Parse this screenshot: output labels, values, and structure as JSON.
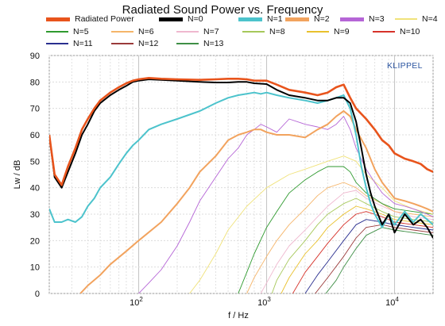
{
  "chart_data": {
    "type": "line",
    "title": "Radiated Sound Power vs. Frequency",
    "xlabel": "f / Hz",
    "ylabel": "Lw / dB",
    "x_scale": "log",
    "xlim": [
      20,
      20000
    ],
    "ylim": [
      0,
      90
    ],
    "yticks": [
      0,
      10,
      20,
      30,
      40,
      50,
      60,
      70,
      80,
      90
    ],
    "xticks": [
      {
        "value": 100,
        "label": "10 2"
      },
      {
        "value": 1000,
        "label": "10 3"
      },
      {
        "value": 10000,
        "label": "10 4"
      }
    ],
    "grid": true,
    "legend_position": "top",
    "brand": "KLIPPEL",
    "series": [
      {
        "name": "Radiated Power",
        "color": "#e8541c",
        "x": [
          20,
          22,
          25,
          28,
          32,
          36,
          40,
          45,
          50,
          60,
          70,
          80,
          90,
          100,
          120,
          150,
          200,
          300,
          400,
          500,
          600,
          700,
          800,
          1000,
          1200,
          1500,
          2000,
          2500,
          3000,
          3500,
          4000,
          4500,
          5000,
          6000,
          7000,
          8000,
          9000,
          10000,
          12000,
          14000,
          16000,
          18000,
          20000
        ],
        "values": [
          60,
          45,
          41,
          48,
          55,
          62,
          66,
          70,
          73,
          76,
          78,
          79.5,
          80.5,
          81,
          81.5,
          81.2,
          81,
          80.8,
          81,
          81.2,
          81.2,
          81,
          80.5,
          80.5,
          79,
          77,
          76,
          75,
          76,
          78,
          79,
          74,
          70,
          66,
          62,
          58,
          56,
          53,
          51,
          50,
          49,
          47,
          46
        ]
      },
      {
        "name": "N=0",
        "color": "#000000",
        "x": [
          20,
          22,
          25,
          28,
          32,
          36,
          40,
          45,
          50,
          60,
          70,
          80,
          90,
          100,
          120,
          150,
          200,
          300,
          400,
          500,
          600,
          700,
          800,
          1000,
          1200,
          1500,
          2000,
          2500,
          3000,
          3500,
          4000,
          4500,
          5000,
          5500,
          6000,
          6500,
          7000,
          8000,
          9000,
          10000,
          12000,
          14000,
          16000,
          18000,
          20000
        ],
        "values": [
          60,
          44,
          40,
          46,
          53,
          60,
          64,
          69,
          72,
          75,
          77,
          78.5,
          80,
          80.5,
          81,
          80.8,
          80.5,
          80,
          79.8,
          79.8,
          80,
          80,
          79.5,
          79.2,
          77,
          75,
          74,
          73,
          73,
          74,
          74,
          72,
          65,
          55,
          45,
          38,
          33,
          26,
          30,
          23,
          30,
          26,
          28,
          25,
          21
        ]
      },
      {
        "name": "N=1",
        "color": "#4cc3cc",
        "x": [
          20,
          22,
          25,
          28,
          32,
          36,
          40,
          45,
          50,
          60,
          70,
          80,
          90,
          100,
          120,
          150,
          200,
          300,
          400,
          500,
          600,
          700,
          800,
          900,
          1000,
          1200,
          1500,
          2000,
          2500,
          3000,
          3500,
          4000,
          4500,
          5000,
          5500,
          6000,
          6500,
          7000,
          8000,
          9000,
          10000,
          12000,
          14000,
          16000,
          18000,
          20000
        ],
        "values": [
          32,
          27,
          27,
          28,
          27,
          29,
          33,
          36,
          40,
          44,
          49,
          53,
          56,
          58,
          62,
          64,
          66,
          69,
          72,
          74,
          75,
          75.5,
          76,
          75.5,
          76,
          75,
          74,
          73,
          72,
          73,
          74,
          75,
          70,
          60,
          48,
          40,
          34,
          30,
          25,
          30,
          26,
          31,
          27,
          30,
          28,
          26
        ]
      },
      {
        "name": "N=2",
        "color": "#f2a35e",
        "x": [
          35,
          40,
          50,
          60,
          80,
          100,
          150,
          200,
          250,
          300,
          400,
          500,
          600,
          700,
          800,
          900,
          1000,
          1200,
          1500,
          2000,
          2500,
          3000,
          3500,
          4000,
          4500,
          5000,
          6000,
          7000,
          8000,
          10000,
          12000,
          14000,
          16000,
          18000,
          20000
        ],
        "values": [
          0,
          3,
          7,
          11,
          16,
          20,
          27,
          34,
          40,
          46,
          52,
          58,
          60,
          61,
          62,
          62,
          61,
          60,
          60,
          59,
          62,
          64,
          67,
          69,
          67,
          62,
          55,
          47,
          42,
          36,
          35,
          34,
          33,
          32,
          31
        ]
      },
      {
        "name": "N=3",
        "color": "#b565d6",
        "x": [
          100,
          120,
          150,
          200,
          250,
          300,
          400,
          500,
          600,
          700,
          800,
          900,
          1000,
          1200,
          1500,
          2000,
          2500,
          3000,
          3500,
          4000,
          4500,
          5000,
          6000,
          7000,
          8000,
          10000,
          12000,
          14000,
          16000,
          18000,
          20000
        ],
        "values": [
          0,
          4,
          9,
          18,
          27,
          35,
          44,
          51,
          55,
          60,
          62,
          64,
          63,
          61,
          66,
          64,
          63,
          62,
          64,
          67,
          62,
          55,
          47,
          42,
          38,
          34,
          33,
          32,
          31,
          30,
          29
        ]
      },
      {
        "name": "N=4",
        "color": "#f0e27a",
        "x": [
          250,
          300,
          400,
          500,
          700,
          1000,
          1500,
          2000,
          3000,
          4000,
          5000,
          6000,
          8000,
          10000,
          14000,
          20000
        ],
        "values": [
          0,
          5,
          15,
          24,
          33,
          40,
          45,
          47,
          50,
          52,
          50,
          45,
          40,
          35,
          32,
          30
        ]
      },
      {
        "name": "N=5",
        "color": "#2f9a2f",
        "x": [
          600,
          700,
          800,
          1000,
          1200,
          1500,
          2000,
          2500,
          3000,
          3500,
          4000,
          4500,
          5000,
          6000,
          8000,
          10000,
          14000,
          20000
        ],
        "values": [
          0,
          8,
          15,
          25,
          31,
          38,
          43,
          46,
          48,
          48,
          48,
          46,
          42,
          38,
          34,
          32,
          31,
          30
        ]
      },
      {
        "name": "N=6",
        "color": "#f5b56a",
        "x": [
          700,
          800,
          1000,
          1200,
          1500,
          2000,
          2500,
          3000,
          4000,
          5000,
          6000,
          8000,
          10000,
          14000,
          20000
        ],
        "values": [
          0,
          6,
          14,
          20,
          26,
          32,
          37,
          40,
          42,
          40,
          37,
          34,
          31,
          30,
          29
        ]
      },
      {
        "name": "N=7",
        "color": "#efb8cf",
        "x": [
          900,
          1000,
          1200,
          1500,
          2000,
          2500,
          3000,
          4000,
          5000,
          6000,
          8000,
          10000,
          14000,
          20000
        ],
        "values": [
          0,
          4,
          11,
          18,
          24,
          29,
          33,
          38,
          39,
          36,
          33,
          31,
          29,
          28
        ]
      },
      {
        "name": "N=8",
        "color": "#a6c85a",
        "x": [
          1100,
          1200,
          1500,
          2000,
          2500,
          3000,
          4000,
          5000,
          6000,
          8000,
          10000,
          14000,
          20000
        ],
        "values": [
          0,
          5,
          13,
          20,
          26,
          30,
          34,
          36,
          34,
          31,
          29,
          28,
          27
        ]
      },
      {
        "name": "N=9",
        "color": "#e9c12d",
        "x": [
          1300,
          1500,
          2000,
          2500,
          3000,
          4000,
          5000,
          6000,
          8000,
          10000,
          14000,
          20000
        ],
        "values": [
          0,
          6,
          15,
          20,
          25,
          30,
          33,
          32,
          30,
          28,
          27,
          26
        ]
      },
      {
        "name": "N=10",
        "color": "#d6322a",
        "x": [
          1600,
          2000,
          2500,
          3000,
          4000,
          5000,
          6000,
          8000,
          10000,
          14000,
          20000
        ],
        "values": [
          0,
          8,
          14,
          19,
          26,
          30,
          31,
          29,
          27,
          26,
          25
        ]
      },
      {
        "name": "N=11",
        "color": "#2a2f8f",
        "x": [
          2000,
          2500,
          3000,
          4000,
          5000,
          6000,
          8000,
          10000,
          14000,
          20000
        ],
        "values": [
          0,
          7,
          12,
          20,
          26,
          28,
          27,
          26,
          25,
          24
        ]
      },
      {
        "name": "N=12",
        "color": "#9a3a3a",
        "x": [
          2400,
          3000,
          4000,
          5000,
          6000,
          8000,
          10000,
          14000,
          20000
        ],
        "values": [
          0,
          6,
          14,
          21,
          25,
          26,
          25,
          24,
          23
        ]
      },
      {
        "name": "N=13",
        "color": "#3f8f46",
        "x": [
          2900,
          3500,
          4000,
          5000,
          6000,
          8000,
          10000,
          14000,
          20000
        ],
        "values": [
          0,
          5,
          10,
          17,
          22,
          25,
          24,
          23,
          22
        ]
      }
    ]
  }
}
